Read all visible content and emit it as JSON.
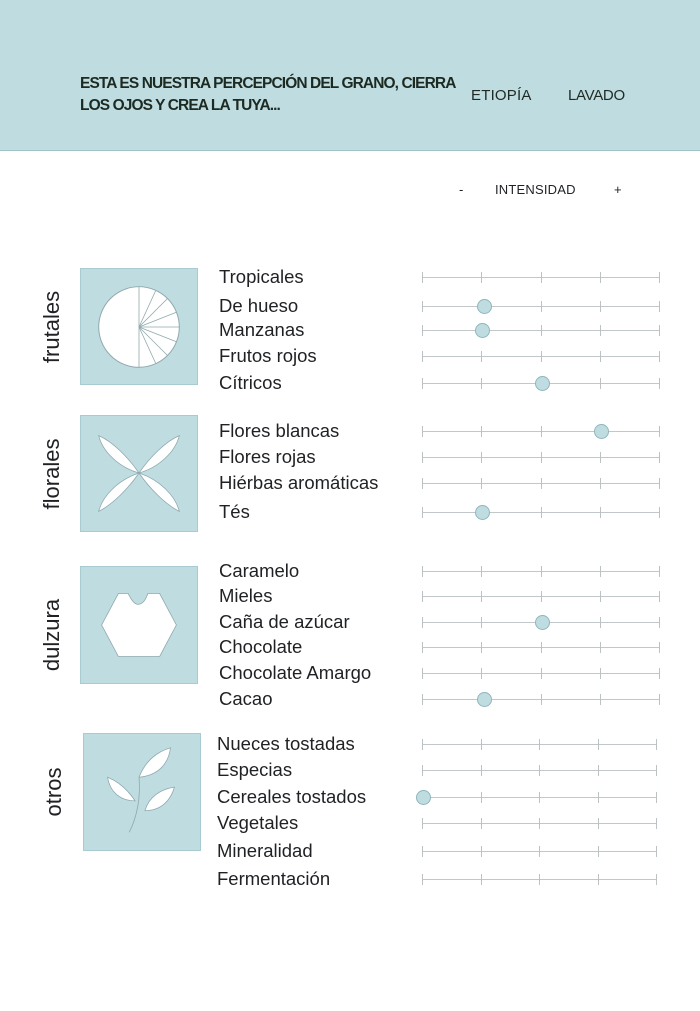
{
  "header": {
    "tagline": "ESTA ES NUESTRA PERCEPCIÓN DEL GRANO, CIERRA LOS OJOS Y CREA LA TUYA...",
    "origin": "ETIOPÍA",
    "process": "LAVADO"
  },
  "intensity": {
    "minus": "-",
    "label": "INTENSIDAD",
    "plus": "+"
  },
  "categories": [
    {
      "label": "frutales",
      "icon": "fruit-slice-icon",
      "items": [
        {
          "label": "Tropicales",
          "intensity": null
        },
        {
          "label": "De hueso",
          "intensity": 0.26
        },
        {
          "label": "Manzanas",
          "intensity": 0.25
        },
        {
          "label": "Frutos rojos",
          "intensity": null
        },
        {
          "label": "Cítricos",
          "intensity": 0.5
        }
      ]
    },
    {
      "label": "florales",
      "icon": "flower-petals-icon",
      "items": [
        {
          "label": "Flores blancas",
          "intensity": 0.75
        },
        {
          "label": "Flores rojas",
          "intensity": null
        },
        {
          "label": "Hiérbas aromáticas",
          "intensity": null
        },
        {
          "label": "Tés",
          "intensity": 0.25
        }
      ]
    },
    {
      "label": "dulzura",
      "icon": "sugar-hexagon-icon",
      "items": [
        {
          "label": "Caramelo",
          "intensity": null
        },
        {
          "label": "Mieles",
          "intensity": null
        },
        {
          "label": "Caña de azúcar",
          "intensity": 0.5
        },
        {
          "label": "Chocolate",
          "intensity": null
        },
        {
          "label": "Chocolate Amargo",
          "intensity": null
        },
        {
          "label": "Cacao",
          "intensity": 0.26
        }
      ]
    },
    {
      "label": "otros",
      "icon": "leaves-icon",
      "items": [
        {
          "label": "Nueces tostadas",
          "intensity": null
        },
        {
          "label": "Especias",
          "intensity": null
        },
        {
          "label": "Cereales tostados",
          "intensity": 0.0
        },
        {
          "label": "Vegetales",
          "intensity": null
        },
        {
          "label": "Mineralidad",
          "intensity": null
        },
        {
          "label": "Fermentación",
          "intensity": null
        }
      ]
    }
  ],
  "colors": {
    "accent": "#bfdce0",
    "text": "#1f2124",
    "scale_line": "#c2c7c9"
  }
}
